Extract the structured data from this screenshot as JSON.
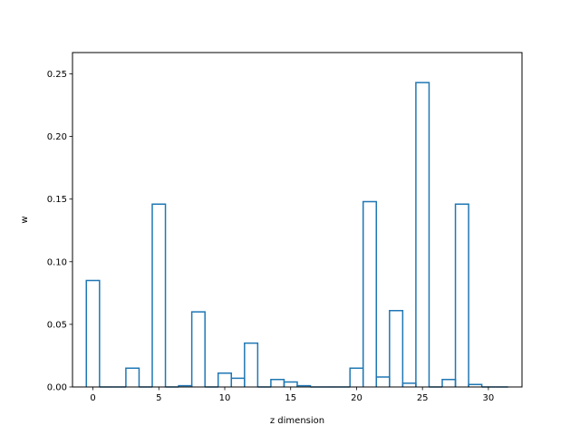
{
  "chart_data": {
    "type": "bar",
    "style": "step-histogram",
    "title": "",
    "xlabel": "z dimension",
    "ylabel": "w",
    "xlim": [
      -1.55,
      32.55
    ],
    "ylim": [
      0,
      0.267
    ],
    "xticks": [
      0,
      5,
      10,
      15,
      20,
      25,
      30
    ],
    "yticks": [
      0.0,
      0.05,
      0.1,
      0.15,
      0.2,
      0.25
    ],
    "ytick_labels": [
      "0.00",
      "0.05",
      "0.10",
      "0.15",
      "0.20",
      "0.25"
    ],
    "grid": false,
    "color": "#1f77b4",
    "x": [
      0,
      1,
      2,
      3,
      4,
      5,
      6,
      7,
      8,
      9,
      10,
      11,
      12,
      13,
      14,
      15,
      16,
      17,
      18,
      19,
      20,
      21,
      22,
      23,
      24,
      25,
      26,
      27,
      28,
      29,
      30,
      31
    ],
    "values": [
      0.085,
      0.0,
      0.0,
      0.015,
      0.0,
      0.146,
      0.0,
      0.001,
      0.06,
      0.0,
      0.011,
      0.007,
      0.035,
      0.0,
      0.006,
      0.004,
      0.001,
      0.0,
      0.0,
      0.0,
      0.015,
      0.148,
      0.008,
      0.061,
      0.003,
      0.243,
      0.0,
      0.006,
      0.146,
      0.002,
      0.0,
      0.0
    ]
  }
}
